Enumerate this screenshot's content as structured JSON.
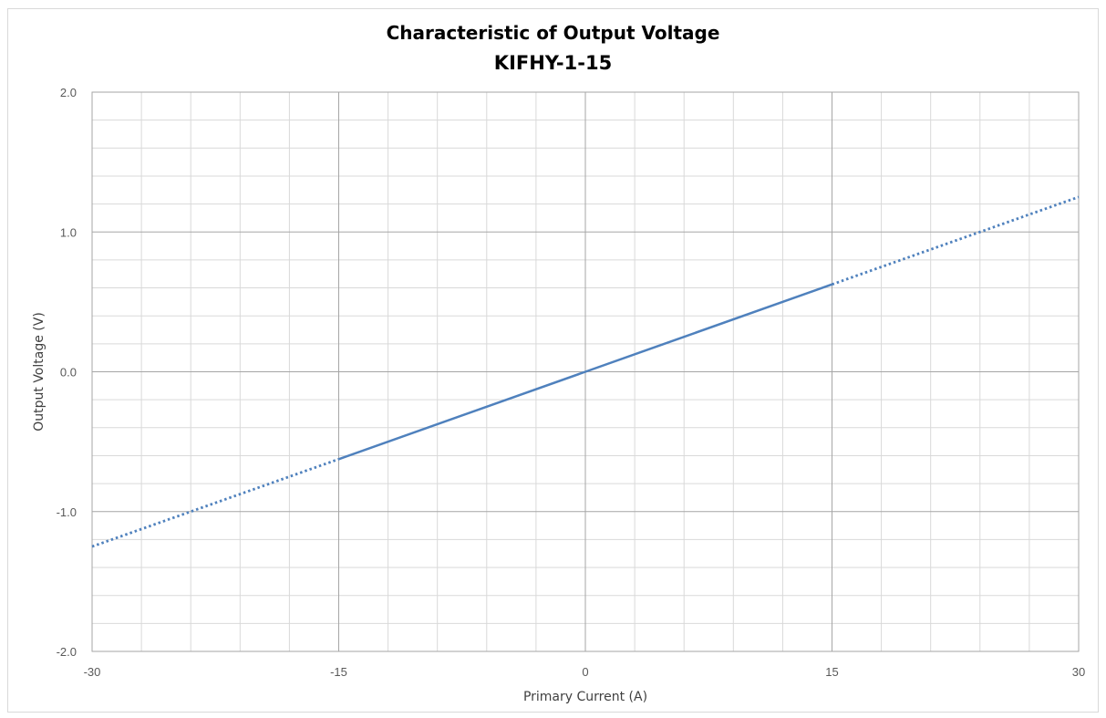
{
  "chart_data": {
    "type": "line",
    "title": "Characteristic of Output Voltage",
    "subtitle": "KIFHY-1-15",
    "xlabel": "Primary Current (A)",
    "ylabel": "Output Voltage (V)",
    "xlim": [
      -30,
      30
    ],
    "ylim": [
      -2.0,
      2.0
    ],
    "x_major_ticks": [
      -30,
      -15,
      0,
      15,
      30
    ],
    "x_major_tick_labels": [
      "-30",
      "-15",
      "0",
      "15",
      "30"
    ],
    "x_minor_step": 3,
    "y_major_ticks": [
      -2.0,
      -1.0,
      0.0,
      1.0,
      2.0
    ],
    "y_major_tick_labels": [
      "-2.0",
      "-1.0",
      "0.0",
      "1.0",
      "2.0"
    ],
    "y_minor_step": 0.2,
    "grid": true,
    "legend": "none",
    "series": [
      {
        "style": "dotted",
        "color": "#4f81bd",
        "x": [
          -30,
          -15
        ],
        "y": [
          -1.25,
          -0.625
        ]
      },
      {
        "style": "solid",
        "color": "#4f81bd",
        "x": [
          -15,
          0,
          15
        ],
        "y": [
          -0.625,
          0.0,
          0.625
        ]
      },
      {
        "style": "dotted",
        "color": "#4f81bd",
        "x": [
          15,
          30
        ],
        "y": [
          0.625,
          1.25
        ]
      }
    ]
  },
  "colors": {
    "major_grid": "#a6a6a6",
    "minor_grid": "#d9d9d9",
    "series": "#4f81bd"
  }
}
